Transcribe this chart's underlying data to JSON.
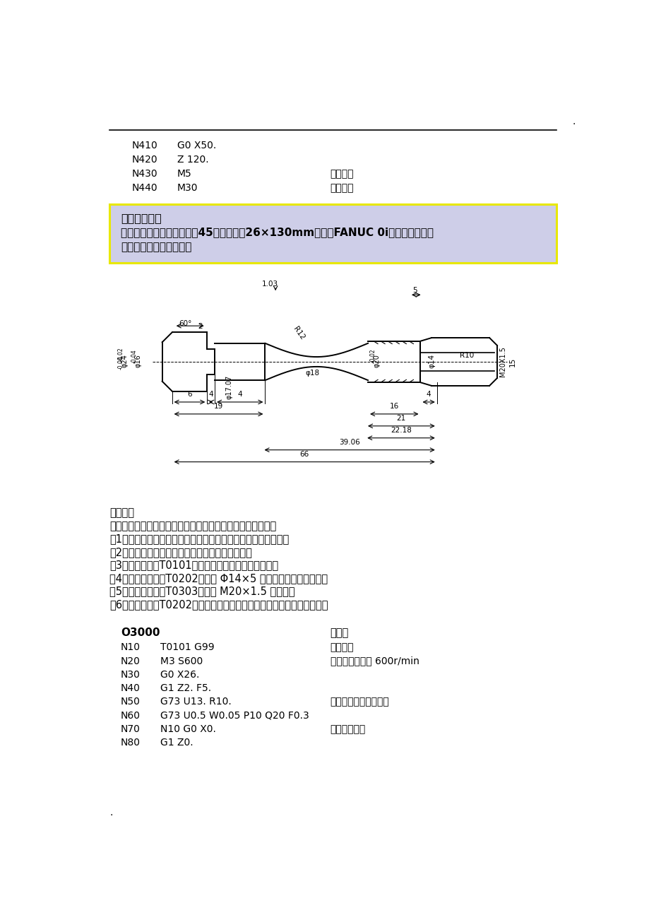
{
  "bg_color": "#ffffff",
  "top_code_lines": [
    {
      "num": "N410",
      "code": "G0 X50.",
      "comment": ""
    },
    {
      "num": "N420",
      "code": "Z 120.",
      "comment": ""
    },
    {
      "num": "N430",
      "code": "M5",
      "comment": "主轴停转"
    },
    {
      "num": "N440",
      "code": "M30",
      "comment": "程序结束"
    }
  ],
  "box_title": "【综合案例】",
  "box_line1": "如图所示的零件图，材料为45逢。毛块为26×130mm，试用FANUC 0i系统数控车床编",
  "box_line2": "程指令编制其加工程序。",
  "analysis_lines": [
    "案例分析",
    "分析零件图纸和数控车床的加工特点，其加工工艺方案如下：",
    "（1）工件坐标系选在工件右竺面的中心，且在三爪卡盘上装夹；",
    "（2）以工件坐标系为参照，确定各基点的坐标值；",
    "（3）选择尖刀（T0101）加工外轮廓，分粗、精加工；",
    "（4）选择切槽刀（T0202）加工 Φ14×5 的螺纹退刀槽和梯形槽；",
    "（5）选择螺纹刀（T0303）加工 M20×1.5 的螺纹；",
    "（6）用切槽刀（T0202）加工右竺台阶并将工件从毛块上切下，修竺面。"
  ],
  "program_header_left": "O3000",
  "program_header_right": "程序名",
  "program_lines": [
    {
      "num": "N10",
      "code": "T0101 G99",
      "comment": "选择尖刀"
    },
    {
      "num": "N20",
      "code": "M3 S600",
      "comment": "主轴正转，转速 600r/min"
    },
    {
      "num": "N30",
      "code": "G0 X26.",
      "comment": ""
    },
    {
      "num": "N40",
      "code": "G1 Z2. F5.",
      "comment": ""
    },
    {
      "num": "N50",
      "code": "G73 U13. R10.",
      "comment": "粗加工外轮廓复合循环"
    },
    {
      "num": "N60",
      "code": "G73 U0.5 W0.05 P10 Q20 F0.3",
      "comment": ""
    },
    {
      "num": "N70",
      "code": "N10 G0 X0.",
      "comment": "循环体起始段"
    },
    {
      "num": "N80",
      "code": "G1 Z0.",
      "comment": ""
    }
  ]
}
